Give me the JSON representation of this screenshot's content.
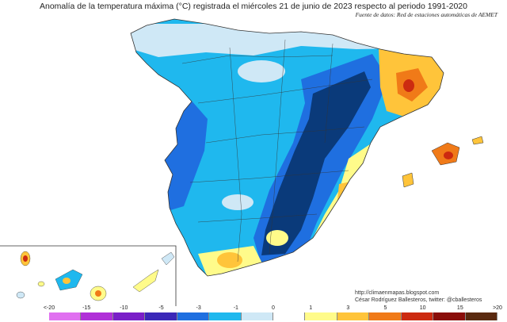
{
  "header": {
    "title": "Anomalía de la temperatura máxima (°C) registrada el miércoles 21 de junio de 2023 respecto al periodo 1991-2020",
    "source": "Fuente de datos: Red de estaciones automáticas de AEMET"
  },
  "credits": {
    "url": "http://climaenmapas.blogspot.com",
    "author": "César Rodríguez Ballesteros, twitter: @cballesteros"
  },
  "legend": {
    "ticks": [
      "<-20",
      "-15",
      "-10",
      "-5",
      "-3",
      "-1",
      "0",
      "1",
      "3",
      "5",
      "10",
      "15",
      ">20"
    ],
    "colors": [
      "#e070f0",
      "#b030d8",
      "#7a1fc8",
      "#3b28b8",
      "#1f6fe0",
      "#1fb8ee",
      "#cfe8f6",
      "#ffffff",
      "#fffb8a",
      "#ffc43a",
      "#f07a18",
      "#cc2a10",
      "#8a0e0a",
      "#5a2a10"
    ]
  },
  "colors": {
    "deep_blue": "#0a3a7a",
    "blue": "#1f6fe0",
    "light_blue": "#1fb8ee",
    "pale_blue": "#cfe8f6",
    "yellow": "#fffb8a",
    "orange": "#ffc43a",
    "dark_orange": "#f07a18",
    "red": "#cc2a10"
  }
}
